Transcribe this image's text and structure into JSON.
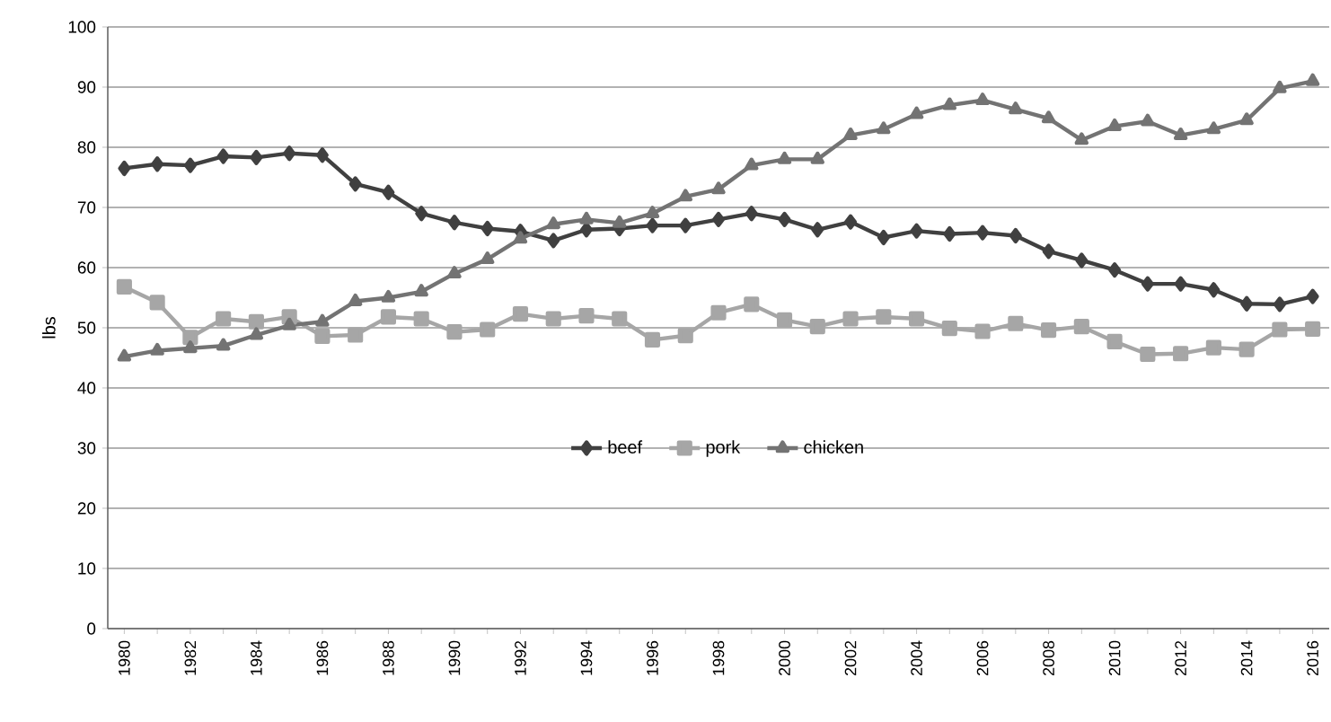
{
  "chart_data": {
    "type": "line",
    "ylabel": "lbs",
    "categories": [
      "1980",
      null,
      "1982",
      null,
      "1984",
      null,
      "1986",
      null,
      "1988",
      null,
      "1990",
      null,
      "1992",
      null,
      "1994",
      null,
      "1996",
      null,
      "1998",
      null,
      "2000",
      null,
      "2002",
      null,
      "2004",
      null,
      "2006",
      null,
      "2008",
      null,
      "2010",
      null,
      "2012",
      null,
      "2014",
      null,
      "2016"
    ],
    "series": [
      {
        "name": "beef",
        "color": "#404040",
        "marker": "diamond",
        "values": [
          76.5,
          77.2,
          77,
          78.5,
          78.3,
          79,
          78.7,
          73.9,
          72.5,
          69,
          67.5,
          66.5,
          66,
          64.5,
          66.3,
          66.5,
          67,
          67,
          68,
          69,
          68,
          66.3,
          67.6,
          65,
          66.1,
          65.6,
          65.8,
          65.3,
          62.7,
          61.2,
          59.6,
          57.3,
          57.3,
          56.3,
          54,
          53.9,
          55.2
        ]
      },
      {
        "name": "pork",
        "color": "#a6a6a6",
        "marker": "square",
        "values": [
          56.8,
          54.2,
          48.4,
          51.5,
          51,
          51.8,
          48.6,
          48.8,
          51.8,
          51.5,
          49.3,
          49.7,
          52.3,
          51.5,
          52,
          51.5,
          48,
          48.7,
          52.5,
          53.9,
          51.3,
          50.2,
          51.5,
          51.8,
          51.5,
          49.9,
          49.4,
          50.7,
          49.6,
          50.2,
          47.7,
          45.6,
          45.7,
          46.7,
          46.4,
          49.7,
          49.8
        ]
      },
      {
        "name": "chicken",
        "color": "#737373",
        "marker": "triangle",
        "values": [
          45.2,
          46.2,
          46.6,
          47,
          48.8,
          50.4,
          51,
          54.4,
          55,
          56,
          59,
          61.4,
          64.8,
          67.2,
          68,
          67.4,
          69,
          71.8,
          73,
          77,
          78,
          78,
          82,
          83,
          85.5,
          87,
          87.8,
          86.3,
          84.8,
          81.2,
          83.5,
          84.3,
          82,
          83,
          84.5,
          89.8,
          91
        ]
      }
    ],
    "ylim": [
      0,
      100
    ],
    "yticks": [
      0,
      10,
      20,
      30,
      40,
      50,
      60,
      70,
      80,
      90,
      100
    ],
    "grid": "y",
    "legend": "bottom",
    "line_style": "solid"
  }
}
